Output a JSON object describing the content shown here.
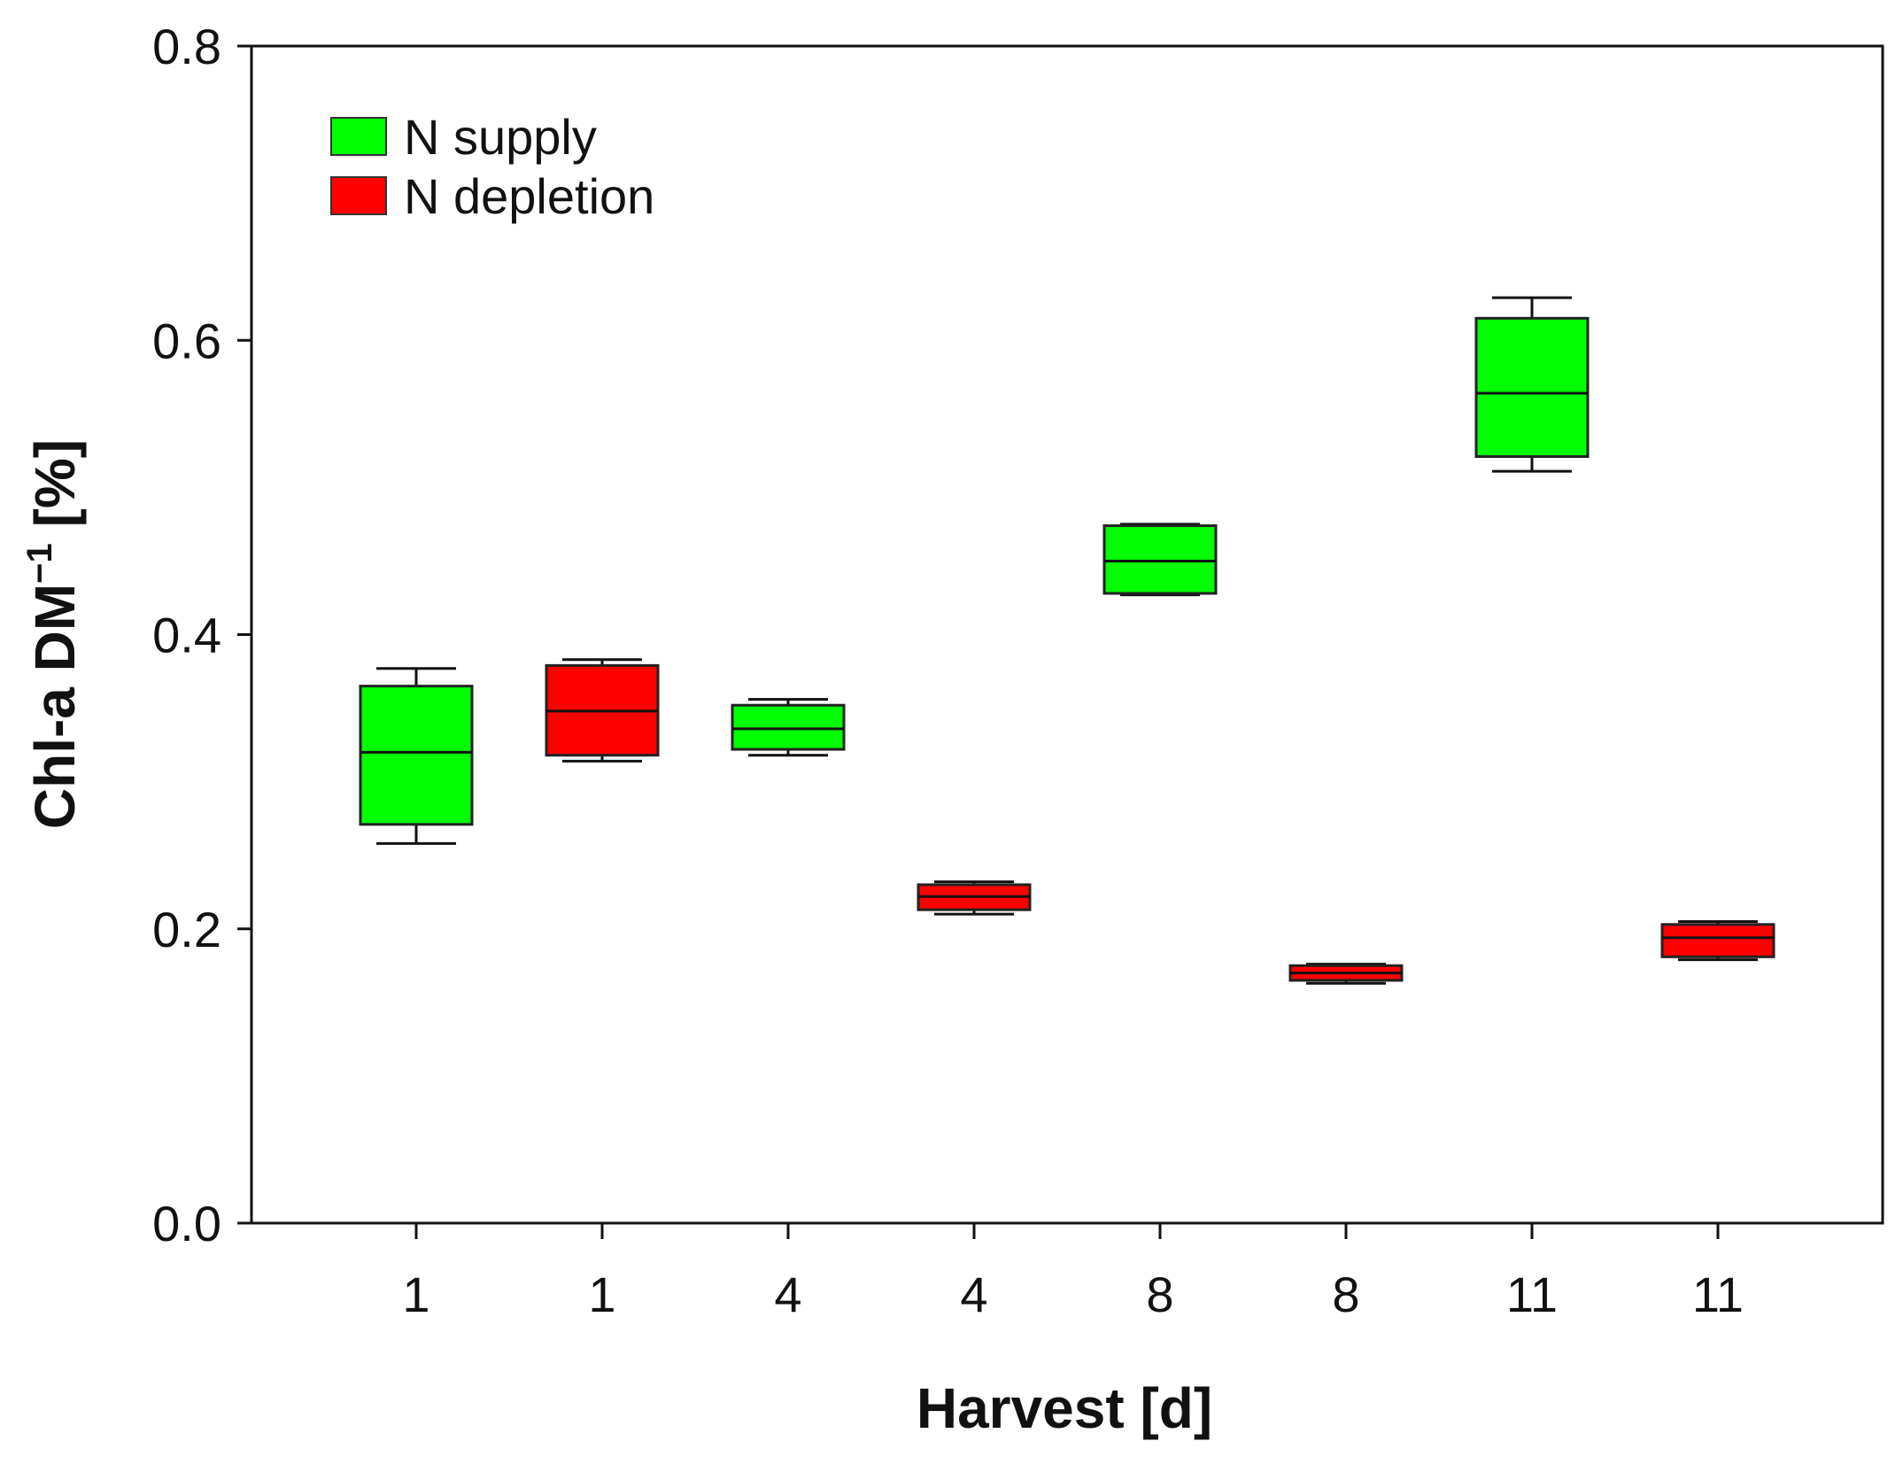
{
  "chart_data": {
    "type": "box",
    "title": "",
    "xlabel": "Harvest [d]",
    "ylabel": {
      "base": "Chl-a DM",
      "superscript": "−1",
      "suffix": " [%]"
    },
    "ylim": [
      0,
      0.8
    ],
    "yticks": [
      "0.0",
      "0.2",
      "0.4",
      "0.6",
      "0.8"
    ],
    "legend_position": "top-left",
    "series": [
      {
        "name": "N supply",
        "color": "#00FF00"
      },
      {
        "name": "N depletion",
        "color": "#FF0000"
      }
    ],
    "boxes": [
      {
        "label": "1",
        "series": "N supply",
        "whisker_low": 0.258,
        "q1": 0.271,
        "median": 0.32,
        "q3": 0.365,
        "whisker_high": 0.377
      },
      {
        "label": "1",
        "series": "N depletion",
        "whisker_low": 0.314,
        "q1": 0.318,
        "median": 0.348,
        "q3": 0.379,
        "whisker_high": 0.383
      },
      {
        "label": "4",
        "series": "N supply",
        "whisker_low": 0.318,
        "q1": 0.322,
        "median": 0.336,
        "q3": 0.352,
        "whisker_high": 0.356
      },
      {
        "label": "4",
        "series": "N depletion",
        "whisker_low": 0.21,
        "q1": 0.213,
        "median": 0.222,
        "q3": 0.23,
        "whisker_high": 0.232
      },
      {
        "label": "8",
        "series": "N supply",
        "whisker_low": 0.427,
        "q1": 0.428,
        "median": 0.45,
        "q3": 0.474,
        "whisker_high": 0.475
      },
      {
        "label": "8",
        "series": "N depletion",
        "whisker_low": 0.163,
        "q1": 0.165,
        "median": 0.17,
        "q3": 0.175,
        "whisker_high": 0.176
      },
      {
        "label": "11",
        "series": "N supply",
        "whisker_low": 0.511,
        "q1": 0.521,
        "median": 0.564,
        "q3": 0.615,
        "whisker_high": 0.629
      },
      {
        "label": "11",
        "series": "N depletion",
        "whisker_low": 0.179,
        "q1": 0.181,
        "median": 0.194,
        "q3": 0.203,
        "whisker_high": 0.205
      }
    ]
  }
}
